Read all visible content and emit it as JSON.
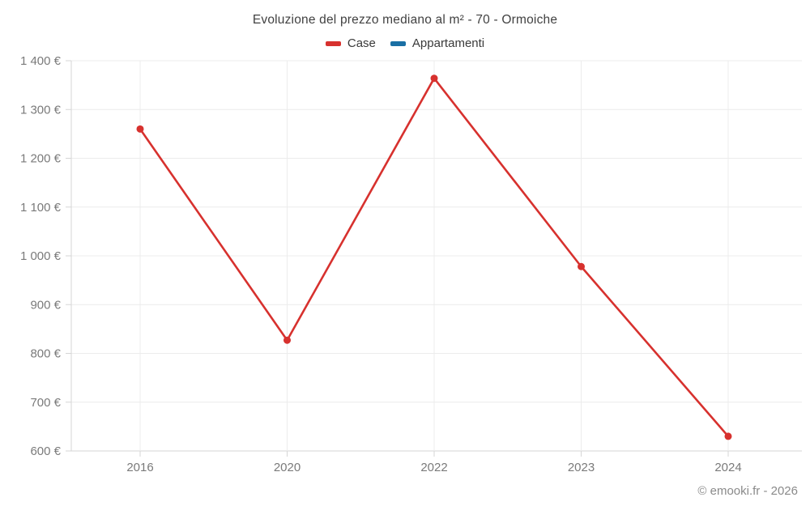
{
  "footer": {
    "text": "© emooki.fr - 2026"
  },
  "chart_data": {
    "type": "line",
    "title": "Evoluzione del prezzo mediano al m² - 70 - Ormoiche",
    "categories": [
      "2016",
      "2020",
      "2022",
      "2023",
      "2024"
    ],
    "series": [
      {
        "name": "Case",
        "color": "#d7312e",
        "values": [
          1260,
          827,
          1364,
          978,
          630
        ]
      },
      {
        "name": "Appartamenti",
        "color": "#1a6fa4",
        "values": []
      }
    ],
    "ylim": [
      600,
      1400
    ],
    "ytick_step": 100,
    "ytick_suffix": " €",
    "grid": true,
    "legend_position": "top",
    "colors": {
      "grid": "#ececec",
      "axis": "#d6d6d6",
      "tick_text": "#7a7a7a"
    }
  }
}
